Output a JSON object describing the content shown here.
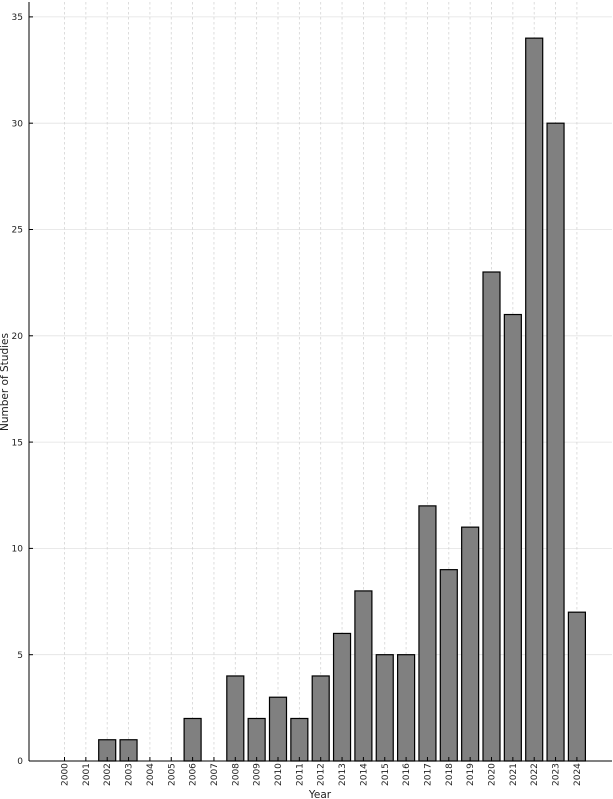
{
  "chart_data": {
    "type": "bar",
    "categories": [
      "2000",
      "2001",
      "2002",
      "2003",
      "2004",
      "2005",
      "2006",
      "2007",
      "2008",
      "2009",
      "2010",
      "2011",
      "2012",
      "2013",
      "2014",
      "2015",
      "2016",
      "2017",
      "2018",
      "2019",
      "2020",
      "2021",
      "2022",
      "2023",
      "2024"
    ],
    "values": [
      0,
      0,
      1,
      1,
      0,
      0,
      2,
      0,
      4,
      2,
      3,
      2,
      4,
      6,
      8,
      5,
      5,
      12,
      9,
      11,
      23,
      21,
      34,
      30,
      7
    ],
    "xlabel": "Year",
    "ylabel": "Number of Studies",
    "ylim": [
      0,
      35.7
    ],
    "yticks": [
      0,
      5,
      10,
      15,
      20,
      25,
      30,
      35
    ],
    "grid": true,
    "bar_color": "#808080",
    "edge_color": "#000000"
  }
}
